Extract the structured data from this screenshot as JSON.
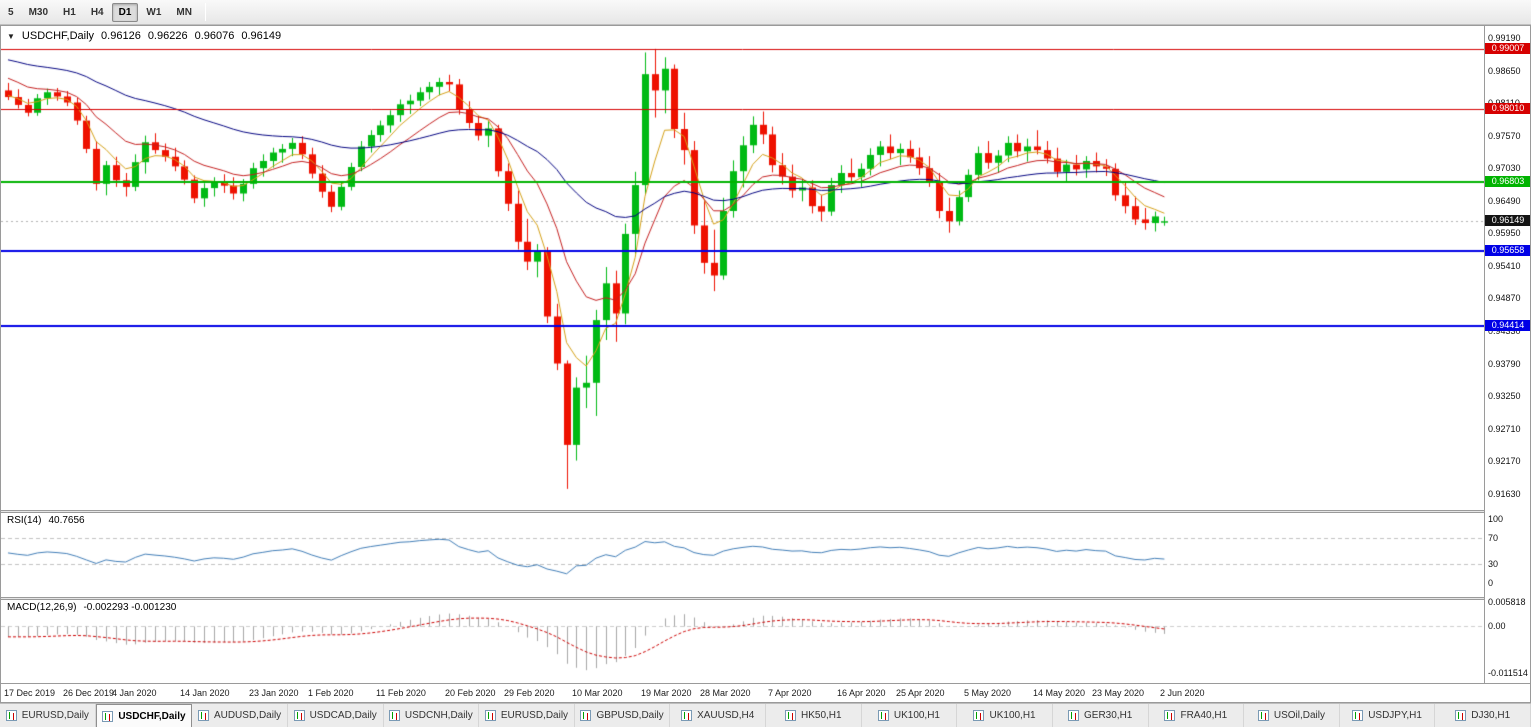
{
  "icons": {
    "symbol_dropdown": "▼"
  },
  "toolbar": {
    "timeframes": [
      "5",
      "M30",
      "H1",
      "H4",
      "D1",
      "W1",
      "MN"
    ],
    "active_timeframe": "D1"
  },
  "chart_header": {
    "symbol": "USDCHF,Daily",
    "open": "0.96126",
    "high": "0.96226",
    "low": "0.96076",
    "close": "0.96149"
  },
  "chart_data": {
    "type": "candlestick",
    "symbol": "USDCHF",
    "timeframe": "Daily",
    "y_axis_ticks": [
      "0.99190",
      "0.98650",
      "0.98110",
      "0.97570",
      "0.97030",
      "0.96490",
      "0.95950",
      "0.95410",
      "0.94870",
      "0.94330",
      "0.93790",
      "0.93250",
      "0.92710",
      "0.92170",
      "0.91630"
    ],
    "horizontal_lines": [
      {
        "price": 0.99007,
        "label": "0.99007",
        "color": "#d60000",
        "width": 1
      },
      {
        "price": 0.9801,
        "label": "0.98010",
        "color": "#d60000",
        "width": 1
      },
      {
        "price": 0.96803,
        "label": "0.96803",
        "color": "#00b300",
        "width": 2
      },
      {
        "price": 0.95658,
        "label": "0.95658",
        "color": "#0000e6",
        "width": 2
      },
      {
        "price": 0.94414,
        "label": "0.94414",
        "color": "#0000e6",
        "width": 2
      }
    ],
    "current_price": {
      "value": 0.96149,
      "label": "0.96149",
      "color": "#141414"
    },
    "candle_colors": {
      "bull": "#00ba14",
      "bear": "#ee1100"
    },
    "candles": [
      [
        0.9832,
        0.98445,
        0.9816,
        0.9821
      ],
      [
        0.9821,
        0.9834,
        0.9802,
        0.9808
      ],
      [
        0.9808,
        0.9818,
        0.9789,
        0.9795
      ],
      [
        0.9795,
        0.9826,
        0.979,
        0.9819
      ],
      [
        0.9819,
        0.9835,
        0.9808,
        0.9829
      ],
      [
        0.9829,
        0.9836,
        0.9815,
        0.9822
      ],
      [
        0.9822,
        0.9831,
        0.9806,
        0.9812
      ],
      [
        0.9812,
        0.982,
        0.9775,
        0.9782
      ],
      [
        0.9782,
        0.979,
        0.9728,
        0.9735
      ],
      [
        0.9735,
        0.9748,
        0.9666,
        0.9677
      ],
      [
        0.9677,
        0.9715,
        0.9658,
        0.9708
      ],
      [
        0.9708,
        0.9722,
        0.9672,
        0.9683
      ],
      [
        0.9683,
        0.9695,
        0.9656,
        0.9672
      ],
      [
        0.9672,
        0.9726,
        0.9665,
        0.9713
      ],
      [
        0.9713,
        0.9757,
        0.9694,
        0.9746
      ],
      [
        0.9746,
        0.9761,
        0.9727,
        0.9733
      ],
      [
        0.9733,
        0.9744,
        0.9714,
        0.9722
      ],
      [
        0.9722,
        0.9737,
        0.9698,
        0.9706
      ],
      [
        0.9706,
        0.9716,
        0.9676,
        0.9684
      ],
      [
        0.9684,
        0.9691,
        0.9645,
        0.9653
      ],
      [
        0.9653,
        0.9678,
        0.9639,
        0.967
      ],
      [
        0.967,
        0.9688,
        0.9656,
        0.9679
      ],
      [
        0.9679,
        0.9693,
        0.9662,
        0.9674
      ],
      [
        0.9674,
        0.9688,
        0.9651,
        0.9661
      ],
      [
        0.9661,
        0.9685,
        0.9648,
        0.9677
      ],
      [
        0.9677,
        0.9712,
        0.9669,
        0.9703
      ],
      [
        0.9703,
        0.9726,
        0.9689,
        0.9715
      ],
      [
        0.9715,
        0.9737,
        0.9704,
        0.9729
      ],
      [
        0.9729,
        0.9743,
        0.9712,
        0.9735
      ],
      [
        0.9735,
        0.9753,
        0.9723,
        0.9745
      ],
      [
        0.9745,
        0.9756,
        0.9718,
        0.9726
      ],
      [
        0.9726,
        0.9737,
        0.9686,
        0.9694
      ],
      [
        0.9694,
        0.9708,
        0.9654,
        0.9664
      ],
      [
        0.9664,
        0.9675,
        0.963,
        0.9639
      ],
      [
        0.9639,
        0.968,
        0.9633,
        0.9672
      ],
      [
        0.9672,
        0.9712,
        0.9666,
        0.9705
      ],
      [
        0.9705,
        0.9748,
        0.9698,
        0.9739
      ],
      [
        0.9739,
        0.9766,
        0.9729,
        0.9758
      ],
      [
        0.9758,
        0.9782,
        0.9747,
        0.9774
      ],
      [
        0.9774,
        0.9799,
        0.9762,
        0.9791
      ],
      [
        0.9791,
        0.9817,
        0.978,
        0.9809
      ],
      [
        0.9809,
        0.9825,
        0.9793,
        0.9815
      ],
      [
        0.9815,
        0.9837,
        0.9806,
        0.9829
      ],
      [
        0.9829,
        0.9846,
        0.9817,
        0.9838
      ],
      [
        0.9838,
        0.9853,
        0.9824,
        0.9846
      ],
      [
        0.9846,
        0.9858,
        0.9831,
        0.9842
      ],
      [
        0.9842,
        0.9851,
        0.9792,
        0.9801
      ],
      [
        0.9801,
        0.9814,
        0.9769,
        0.9778
      ],
      [
        0.9778,
        0.979,
        0.9749,
        0.9757
      ],
      [
        0.9757,
        0.9781,
        0.9738,
        0.9769
      ],
      [
        0.9769,
        0.9775,
        0.9689,
        0.9698
      ],
      [
        0.9698,
        0.9711,
        0.9632,
        0.9644
      ],
      [
        0.9644,
        0.9666,
        0.9568,
        0.9581
      ],
      [
        0.9581,
        0.9619,
        0.9534,
        0.9548
      ],
      [
        0.9548,
        0.9577,
        0.9522,
        0.9564
      ],
      [
        0.9564,
        0.9572,
        0.9446,
        0.9457
      ],
      [
        0.9457,
        0.9478,
        0.9368,
        0.9379
      ],
      [
        0.9379,
        0.9384,
        0.9171,
        0.9244
      ],
      [
        0.9244,
        0.9356,
        0.9218,
        0.9339
      ],
      [
        0.9339,
        0.9392,
        0.9305,
        0.9347
      ],
      [
        0.9347,
        0.9468,
        0.9292,
        0.9451
      ],
      [
        0.9451,
        0.9539,
        0.9418,
        0.9512
      ],
      [
        0.9512,
        0.9533,
        0.9415,
        0.9462
      ],
      [
        0.9462,
        0.9611,
        0.9444,
        0.9594
      ],
      [
        0.9594,
        0.9697,
        0.9561,
        0.9675
      ],
      [
        0.9675,
        0.9895,
        0.9659,
        0.9859
      ],
      [
        0.9859,
        0.9901,
        0.9787,
        0.9832
      ],
      [
        0.9832,
        0.9887,
        0.9794,
        0.9868
      ],
      [
        0.9868,
        0.9875,
        0.9753,
        0.9768
      ],
      [
        0.9768,
        0.9795,
        0.9709,
        0.9733
      ],
      [
        0.9733,
        0.9748,
        0.9594,
        0.9608
      ],
      [
        0.9608,
        0.9649,
        0.9528,
        0.9546
      ],
      [
        0.9546,
        0.9601,
        0.9499,
        0.9525
      ],
      [
        0.9525,
        0.9654,
        0.9518,
        0.9632
      ],
      [
        0.9632,
        0.9716,
        0.9621,
        0.9698
      ],
      [
        0.9698,
        0.9756,
        0.9671,
        0.9741
      ],
      [
        0.9741,
        0.9789,
        0.9728,
        0.9775
      ],
      [
        0.9775,
        0.9797,
        0.9743,
        0.9759
      ],
      [
        0.9759,
        0.9772,
        0.9696,
        0.9708
      ],
      [
        0.9708,
        0.9728,
        0.9676,
        0.9689
      ],
      [
        0.9689,
        0.9709,
        0.9654,
        0.9666
      ],
      [
        0.9666,
        0.9684,
        0.9648,
        0.9671
      ],
      [
        0.9671,
        0.9683,
        0.9628,
        0.964
      ],
      [
        0.964,
        0.9659,
        0.9615,
        0.9631
      ],
      [
        0.9631,
        0.9687,
        0.9624,
        0.9675
      ],
      [
        0.9675,
        0.9708,
        0.9662,
        0.9695
      ],
      [
        0.9695,
        0.9719,
        0.9678,
        0.9688
      ],
      [
        0.9688,
        0.9711,
        0.9672,
        0.9702
      ],
      [
        0.9702,
        0.9736,
        0.9691,
        0.9725
      ],
      [
        0.9725,
        0.9748,
        0.9706,
        0.9739
      ],
      [
        0.9739,
        0.9759,
        0.9718,
        0.9728
      ],
      [
        0.9728,
        0.9744,
        0.9708,
        0.9735
      ],
      [
        0.9735,
        0.9749,
        0.9712,
        0.9721
      ],
      [
        0.9721,
        0.9737,
        0.9692,
        0.9703
      ],
      [
        0.9703,
        0.9723,
        0.9672,
        0.9681
      ],
      [
        0.9681,
        0.9695,
        0.962,
        0.9632
      ],
      [
        0.9632,
        0.9654,
        0.9596,
        0.9615
      ],
      [
        0.9615,
        0.9666,
        0.9608,
        0.9655
      ],
      [
        0.9655,
        0.9701,
        0.9647,
        0.9692
      ],
      [
        0.9692,
        0.9739,
        0.9683,
        0.9728
      ],
      [
        0.9728,
        0.9748,
        0.9702,
        0.9712
      ],
      [
        0.9712,
        0.9733,
        0.9695,
        0.9724
      ],
      [
        0.9724,
        0.9756,
        0.9713,
        0.9745
      ],
      [
        0.9745,
        0.9759,
        0.9721,
        0.9731
      ],
      [
        0.9731,
        0.9752,
        0.9714,
        0.9739
      ],
      [
        0.9739,
        0.9766,
        0.9726,
        0.9733
      ],
      [
        0.9733,
        0.9748,
        0.9711,
        0.9719
      ],
      [
        0.9719,
        0.9737,
        0.9688,
        0.9697
      ],
      [
        0.9697,
        0.9717,
        0.9679,
        0.9709
      ],
      [
        0.9709,
        0.9725,
        0.9691,
        0.9701
      ],
      [
        0.9701,
        0.9723,
        0.9687,
        0.9715
      ],
      [
        0.9715,
        0.9729,
        0.9696,
        0.9706
      ],
      [
        0.9706,
        0.9718,
        0.969,
        0.9702
      ],
      [
        0.9702,
        0.9711,
        0.9649,
        0.9658
      ],
      [
        0.9658,
        0.9679,
        0.9628,
        0.964
      ],
      [
        0.964,
        0.9656,
        0.9609,
        0.9618
      ],
      [
        0.9618,
        0.9637,
        0.9601,
        0.9612
      ],
      [
        0.9612,
        0.9631,
        0.9598,
        0.9623
      ],
      [
        0.96126,
        0.96226,
        0.96076,
        0.96149
      ]
    ],
    "x_axis_labels": [
      {
        "text": "17 Dec 2019",
        "i": 0
      },
      {
        "text": "26 Dec 2019",
        "i": 6
      },
      {
        "text": "4 Jan 2020",
        "i": 11
      },
      {
        "text": "14 Jan 2020",
        "i": 18
      },
      {
        "text": "23 Jan 2020",
        "i": 25
      },
      {
        "text": "1 Feb 2020",
        "i": 31
      },
      {
        "text": "11 Feb 2020",
        "i": 38
      },
      {
        "text": "20 Feb 2020",
        "i": 45
      },
      {
        "text": "29 Feb 2020",
        "i": 51
      },
      {
        "text": "10 Mar 2020",
        "i": 58
      },
      {
        "text": "19 Mar 2020",
        "i": 65
      },
      {
        "text": "28 Mar 2020",
        "i": 71
      },
      {
        "text": "7 Apr 2020",
        "i": 78
      },
      {
        "text": "16 Apr 2020",
        "i": 85
      },
      {
        "text": "25 Apr 2020",
        "i": 91
      },
      {
        "text": "5 May 2020",
        "i": 98
      },
      {
        "text": "14 May 2020",
        "i": 105
      },
      {
        "text": "23 May 2020",
        "i": 111
      },
      {
        "text": "2 Jun 2020",
        "i": 118
      }
    ],
    "indicators": {
      "moving_averages": [
        {
          "period": 5,
          "seed": 0.9825,
          "color": "#d4a017"
        },
        {
          "period": 12,
          "seed": 0.9858,
          "color": "#c41e1e"
        },
        {
          "period": 40,
          "seed": 0.9886,
          "color": "#000080"
        }
      ],
      "rsi": {
        "label": "RSI(14)",
        "value": "40.7656",
        "period": 14,
        "color": "#3f7cb6",
        "levels": [
          70,
          30
        ],
        "scale_labels": [
          {
            "text": "100",
            "value": 100
          },
          {
            "text": "70",
            "value": 70
          },
          {
            "text": "30",
            "value": 30
          },
          {
            "text": "0",
            "value": 0
          }
        ]
      },
      "macd": {
        "label": "MACD(12,26,9)",
        "value": "-0.002293 -0.001230",
        "fast": 12,
        "slow": 26,
        "signal": 9,
        "hist_color": "#a6a6a6",
        "signal_color": "#cc0000",
        "scale_labels": [
          {
            "text": "0.005818",
            "value": 0.005818
          },
          {
            "text": "0.00",
            "value": 0
          },
          {
            "text": "-0.011514",
            "value": -0.011514
          }
        ]
      }
    }
  },
  "tabs": {
    "items": [
      "EURUSD,Daily",
      "USDCHF,Daily",
      "AUDUSD,Daily",
      "USDCAD,Daily",
      "USDCNH,Daily",
      "EURUSD,Daily",
      "GBPUSD,Daily",
      "XAUUSD,H4",
      "HK50,H1",
      "UK100,H1",
      "UK100,H1",
      "GER30,H1",
      "FRA40,H1",
      "USOil,Daily",
      "USDJPY,H1",
      "DJ30,H1"
    ],
    "active_index": 1
  }
}
